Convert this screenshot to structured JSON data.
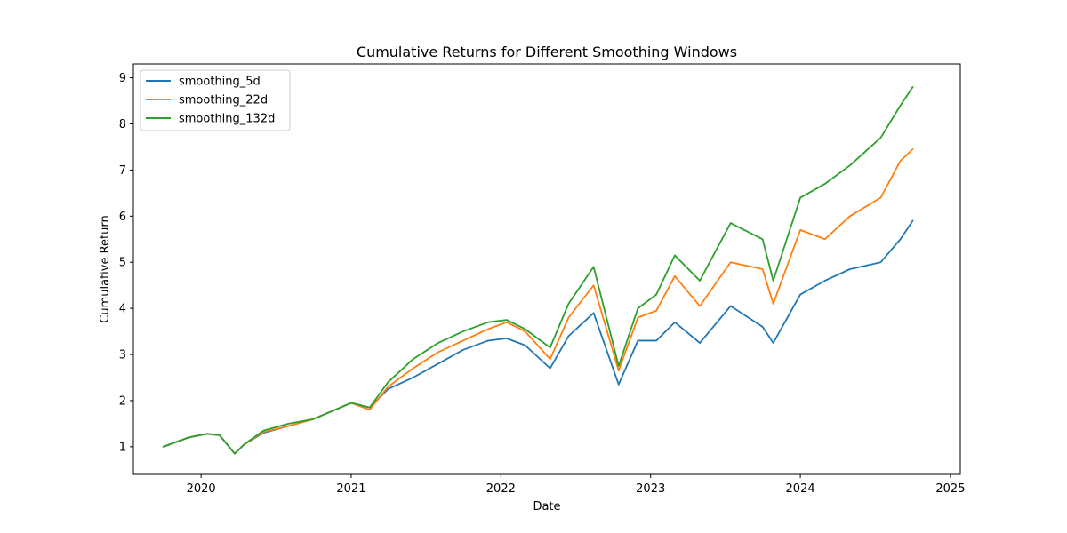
{
  "chart_data": {
    "type": "line",
    "title": "Cumulative Returns for Different Smoothing Windows",
    "xlabel": "Date",
    "ylabel": "Cumulative Return",
    "x_ticks": [
      "2020",
      "2021",
      "2022",
      "2023",
      "2024",
      "2025"
    ],
    "y_ticks": [
      "1",
      "2",
      "3",
      "4",
      "5",
      "6",
      "7",
      "8",
      "9"
    ],
    "xlim": [
      "2019-07-20",
      "2025-01-25"
    ],
    "ylim": [
      0.4,
      9.3
    ],
    "grid": false,
    "legend_position": "top-left",
    "x": [
      "2019-10-01",
      "2019-12-01",
      "2020-01-15",
      "2020-02-15",
      "2020-03-23",
      "2020-04-15",
      "2020-06-01",
      "2020-08-01",
      "2020-10-01",
      "2021-01-01",
      "2021-02-15",
      "2021-04-01",
      "2021-06-01",
      "2021-08-01",
      "2021-10-01",
      "2021-12-01",
      "2022-01-15",
      "2022-03-01",
      "2022-05-01",
      "2022-06-15",
      "2022-08-15",
      "2022-10-15",
      "2022-12-01",
      "2023-01-15",
      "2023-03-01",
      "2023-05-01",
      "2023-07-15",
      "2023-10-01",
      "2023-10-27",
      "2024-01-01",
      "2024-03-01",
      "2024-05-01",
      "2024-07-15",
      "2024-09-01",
      "2024-10-01"
    ],
    "series": [
      {
        "name": "smoothing_5d",
        "color": "#1f77b4",
        "values": [
          1.0,
          1.2,
          1.28,
          1.25,
          0.85,
          1.05,
          1.3,
          1.45,
          1.6,
          1.95,
          1.85,
          2.25,
          2.5,
          2.8,
          3.1,
          3.3,
          3.35,
          3.2,
          2.7,
          3.4,
          3.9,
          2.35,
          3.3,
          3.3,
          3.7,
          3.25,
          4.05,
          3.6,
          3.25,
          4.3,
          4.6,
          4.85,
          5.0,
          5.5,
          5.9
        ]
      },
      {
        "name": "smoothing_22d",
        "color": "#ff7f0e",
        "values": [
          1.0,
          1.2,
          1.28,
          1.25,
          0.85,
          1.05,
          1.32,
          1.45,
          1.6,
          1.95,
          1.8,
          2.3,
          2.7,
          3.05,
          3.3,
          3.55,
          3.7,
          3.5,
          2.9,
          3.8,
          4.5,
          2.65,
          3.8,
          3.95,
          4.7,
          4.05,
          5.0,
          4.85,
          4.1,
          5.7,
          5.5,
          6.0,
          6.4,
          7.2,
          7.45
        ]
      },
      {
        "name": "smoothing_132d",
        "color": "#2ca02c",
        "values": [
          1.0,
          1.2,
          1.28,
          1.25,
          0.85,
          1.05,
          1.35,
          1.5,
          1.6,
          1.95,
          1.85,
          2.4,
          2.9,
          3.25,
          3.5,
          3.7,
          3.75,
          3.55,
          3.15,
          4.1,
          4.9,
          2.75,
          4.0,
          4.3,
          5.15,
          4.6,
          5.85,
          5.5,
          4.6,
          6.4,
          6.7,
          7.1,
          7.7,
          8.4,
          8.8
        ]
      }
    ]
  }
}
